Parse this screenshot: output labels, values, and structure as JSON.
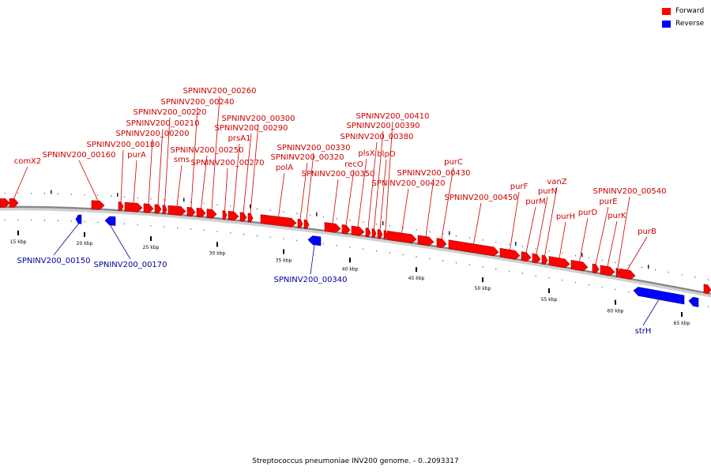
{
  "colors": {
    "forward": "#ff0000",
    "reverse": "#0000ff",
    "backbone": "#888888",
    "label_forward": "#cc0000",
    "label_reverse": "#000099"
  },
  "legend": {
    "forward_label": "Forward",
    "reverse_label": "Reverse"
  },
  "caption": "Streptococcus pneumoniae INV200 genome. - 0..2093317",
  "scale_unit": "kbp",
  "ticks": [
    15,
    20,
    25,
    30,
    35,
    40,
    45,
    50,
    55,
    60,
    65
  ],
  "genes": [
    {
      "name": "comX2",
      "strand": "forward"
    },
    {
      "name": "SPNINV200_00150",
      "strand": "reverse"
    },
    {
      "name": "SPNINV200_00160",
      "strand": "forward"
    },
    {
      "name": "SPNINV200_00170",
      "strand": "reverse"
    },
    {
      "name": "SPNINV200_00180",
      "strand": "forward"
    },
    {
      "name": "purA",
      "strand": "forward"
    },
    {
      "name": "SPNINV200_00200",
      "strand": "forward"
    },
    {
      "name": "SPNINV200_00210",
      "strand": "forward"
    },
    {
      "name": "SPNINV200_00220",
      "strand": "forward"
    },
    {
      "name": "sms",
      "strand": "forward"
    },
    {
      "name": "SPNINV200_00240",
      "strand": "forward"
    },
    {
      "name": "SPNINV200_00250",
      "strand": "forward"
    },
    {
      "name": "SPNINV200_00260",
      "strand": "forward"
    },
    {
      "name": "SPNINV200_00270",
      "strand": "forward"
    },
    {
      "name": "prsA1",
      "strand": "forward"
    },
    {
      "name": "SPNINV200_00290",
      "strand": "forward"
    },
    {
      "name": "SPNINV200_00300",
      "strand": "forward"
    },
    {
      "name": "polA",
      "strand": "forward"
    },
    {
      "name": "SPNINV200_00320",
      "strand": "forward"
    },
    {
      "name": "SPNINV200_00330",
      "strand": "forward"
    },
    {
      "name": "SPNINV200_00340",
      "strand": "reverse"
    },
    {
      "name": "SPNINV200_00350",
      "strand": "forward"
    },
    {
      "name": "recO",
      "strand": "forward"
    },
    {
      "name": "plsX",
      "strand": "forward"
    },
    {
      "name": "SPNINV200_00380",
      "strand": "forward"
    },
    {
      "name": "SPNINV200_00390",
      "strand": "forward"
    },
    {
      "name": "blpO",
      "strand": "forward"
    },
    {
      "name": "SPNINV200_00410",
      "strand": "forward"
    },
    {
      "name": "SPNINV200_00420",
      "strand": "forward"
    },
    {
      "name": "SPNINV200_00430",
      "strand": "forward"
    },
    {
      "name": "purC",
      "strand": "forward"
    },
    {
      "name": "SPNINV200_00450",
      "strand": "forward"
    },
    {
      "name": "purF",
      "strand": "forward"
    },
    {
      "name": "purM",
      "strand": "forward"
    },
    {
      "name": "purN",
      "strand": "forward"
    },
    {
      "name": "vanZ",
      "strand": "forward"
    },
    {
      "name": "purH",
      "strand": "forward"
    },
    {
      "name": "purD",
      "strand": "forward"
    },
    {
      "name": "purE",
      "strand": "forward"
    },
    {
      "name": "purK",
      "strand": "forward"
    },
    {
      "name": "SPNINV200_00540",
      "strand": "forward"
    },
    {
      "name": "purB",
      "strand": "forward"
    },
    {
      "name": "strH",
      "strand": "reverse"
    }
  ]
}
